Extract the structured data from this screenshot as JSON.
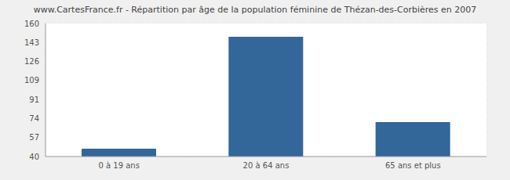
{
  "chart_data": {
    "type": "bar",
    "title": "www.CartesFrance.fr - Répartition par âge de la population féminine de Thézan-des-Corbières en 2007",
    "categories": [
      "0 à 19 ans",
      "20 à 64 ans",
      "65 ans et plus"
    ],
    "values": [
      47,
      148,
      71
    ],
    "color": "#336699",
    "ylim": [
      40,
      160
    ],
    "yticks": [
      40,
      57,
      74,
      91,
      109,
      126,
      143,
      160
    ],
    "grid": true
  }
}
